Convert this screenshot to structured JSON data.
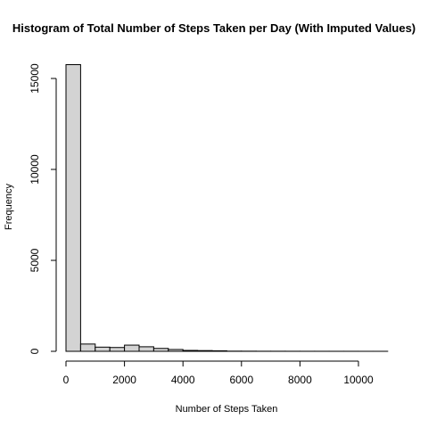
{
  "chart_data": {
    "type": "bar",
    "title": "Histogram of Total Number of Steps Taken per Day (With Imputed Values)",
    "xlabel": "Number of Steps Taken",
    "ylabel": "Frequency",
    "xlim": [
      0,
      11000
    ],
    "ylim": [
      0,
      16000
    ],
    "x_ticks": [
      0,
      2000,
      4000,
      6000,
      8000,
      10000
    ],
    "y_ticks": [
      0,
      5000,
      10000,
      15000
    ],
    "bin_width": 500,
    "bins": [
      {
        "start": 0,
        "end": 500,
        "count": 15760
      },
      {
        "start": 500,
        "end": 1000,
        "count": 400
      },
      {
        "start": 1000,
        "end": 1500,
        "count": 230
      },
      {
        "start": 1500,
        "end": 2000,
        "count": 210
      },
      {
        "start": 2000,
        "end": 2500,
        "count": 340
      },
      {
        "start": 2500,
        "end": 3000,
        "count": 250
      },
      {
        "start": 3000,
        "end": 3500,
        "count": 160
      },
      {
        "start": 3500,
        "end": 4000,
        "count": 100
      },
      {
        "start": 4000,
        "end": 4500,
        "count": 50
      },
      {
        "start": 4500,
        "end": 5000,
        "count": 40
      },
      {
        "start": 5000,
        "end": 5500,
        "count": 30
      },
      {
        "start": 5500,
        "end": 6000,
        "count": 10
      },
      {
        "start": 6000,
        "end": 6500,
        "count": 8
      },
      {
        "start": 6500,
        "end": 7000,
        "count": 5
      },
      {
        "start": 7000,
        "end": 7500,
        "count": 5
      },
      {
        "start": 7500,
        "end": 8000,
        "count": 4
      },
      {
        "start": 8000,
        "end": 8500,
        "count": 3
      },
      {
        "start": 8500,
        "end": 9000,
        "count": 3
      },
      {
        "start": 9000,
        "end": 9500,
        "count": 2
      },
      {
        "start": 9500,
        "end": 10000,
        "count": 2
      },
      {
        "start": 10000,
        "end": 10500,
        "count": 1
      },
      {
        "start": 10500,
        "end": 11000,
        "count": 1
      }
    ],
    "bar_color": "#d3d3d3",
    "grid": false,
    "legend": "none"
  }
}
